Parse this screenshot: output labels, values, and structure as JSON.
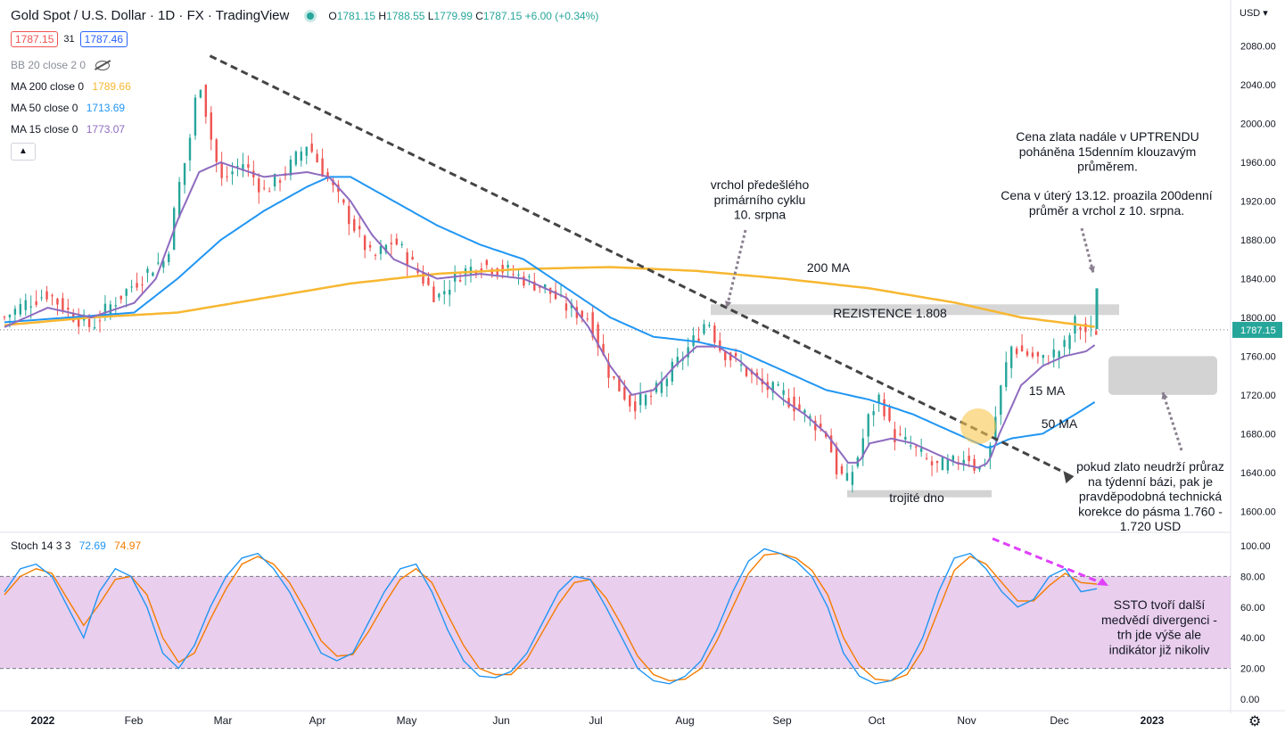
{
  "header": {
    "symbol": "Gold Spot / U.S. Dollar · 1D · FX · TradingView",
    "open": "1781.15",
    "high": "1788.55",
    "low": "1779.99",
    "close": "1787.15",
    "change": "+6.00 (+0.34%)",
    "bid": "1787.15",
    "spread": "31",
    "ask": "1787.46",
    "currency": "USD"
  },
  "indicators": [
    {
      "label": "BB 20 close 2 0",
      "value": "",
      "color": "#8a8e99"
    },
    {
      "label": "MA 200 close 0",
      "value": "1789.66",
      "color": "#f7b731"
    },
    {
      "label": "MA 50 close 0",
      "value": "1713.69",
      "color": "#2196f3"
    },
    {
      "label": "MA 15 close 0",
      "value": "1773.07",
      "color": "#8e6bbf"
    }
  ],
  "stoch": {
    "label": "Stoch 14 3 3",
    "k": "72.69",
    "d": "74.97",
    "k_color": "#2196f3",
    "d_color": "#f57c00",
    "upper_band": 80,
    "lower_band": 20,
    "ticks": [
      "100.00",
      "80.00",
      "60.00",
      "40.00",
      "20.00",
      "0.00"
    ]
  },
  "chart_data": {
    "type": "candlestick",
    "title": "Gold Spot / U.S. Dollar · 1D · FX · TradingView",
    "ylim": [
      1580,
      2100
    ],
    "y_ticks": [
      1600,
      1640,
      1680,
      1720,
      1760,
      1800,
      1840,
      1880,
      1920,
      1960,
      2000,
      2040,
      2080
    ],
    "x_ticks": [
      "2022",
      "Feb",
      "Mar",
      "Apr",
      "May",
      "Jun",
      "Jul",
      "Aug",
      "Sep",
      "Oct",
      "Nov",
      "Dec",
      "2023"
    ],
    "last_price": "1787.15",
    "colors": {
      "up": "#26a69a",
      "down": "#ef5350",
      "ma200": "#f7b731",
      "ma50": "#2196f3",
      "ma15": "#8e6bbf"
    },
    "price_path": [
      [
        0,
        1800
      ],
      [
        10,
        1815
      ],
      [
        20,
        1825
      ],
      [
        30,
        1805
      ],
      [
        40,
        1790
      ],
      [
        50,
        1815
      ],
      [
        60,
        1835
      ],
      [
        70,
        1855
      ],
      [
        75,
        1860
      ],
      [
        80,
        1930
      ],
      [
        85,
        1975
      ],
      [
        90,
        2050
      ],
      [
        95,
        1990
      ],
      [
        100,
        1940
      ],
      [
        110,
        1960
      ],
      [
        120,
        1930
      ],
      [
        130,
        1950
      ],
      [
        140,
        1980
      ],
      [
        150,
        1940
      ],
      [
        160,
        1900
      ],
      [
        170,
        1860
      ],
      [
        180,
        1880
      ],
      [
        190,
        1850
      ],
      [
        200,
        1820
      ],
      [
        210,
        1845
      ],
      [
        220,
        1855
      ],
      [
        230,
        1850
      ],
      [
        240,
        1840
      ],
      [
        250,
        1830
      ],
      [
        260,
        1810
      ],
      [
        270,
        1800
      ],
      [
        280,
        1740
      ],
      [
        290,
        1710
      ],
      [
        300,
        1720
      ],
      [
        310,
        1750
      ],
      [
        320,
        1780
      ],
      [
        325,
        1800
      ],
      [
        330,
        1770
      ],
      [
        340,
        1750
      ],
      [
        350,
        1730
      ],
      [
        360,
        1720
      ],
      [
        370,
        1700
      ],
      [
        380,
        1680
      ],
      [
        385,
        1640
      ],
      [
        390,
        1630
      ],
      [
        395,
        1660
      ],
      [
        400,
        1700
      ],
      [
        405,
        1720
      ],
      [
        410,
        1680
      ],
      [
        420,
        1665
      ],
      [
        430,
        1645
      ],
      [
        440,
        1650
      ],
      [
        445,
        1660
      ],
      [
        450,
        1640
      ],
      [
        455,
        1660
      ],
      [
        460,
        1720
      ],
      [
        465,
        1770
      ],
      [
        470,
        1765
      ],
      [
        480,
        1755
      ],
      [
        490,
        1770
      ],
      [
        495,
        1795
      ],
      [
        500,
        1785
      ],
      [
        505,
        1787
      ]
    ],
    "ma15_path": [
      [
        0,
        1790
      ],
      [
        20,
        1810
      ],
      [
        40,
        1800
      ],
      [
        60,
        1815
      ],
      [
        70,
        1840
      ],
      [
        80,
        1900
      ],
      [
        90,
        1950
      ],
      [
        100,
        1960
      ],
      [
        120,
        1945
      ],
      [
        140,
        1950
      ],
      [
        150,
        1945
      ],
      [
        160,
        1920
      ],
      [
        170,
        1885
      ],
      [
        180,
        1860
      ],
      [
        190,
        1850
      ],
      [
        200,
        1840
      ],
      [
        220,
        1845
      ],
      [
        240,
        1840
      ],
      [
        260,
        1820
      ],
      [
        270,
        1790
      ],
      [
        280,
        1750
      ],
      [
        290,
        1720
      ],
      [
        300,
        1725
      ],
      [
        310,
        1750
      ],
      [
        320,
        1770
      ],
      [
        330,
        1770
      ],
      [
        340,
        1755
      ],
      [
        350,
        1735
      ],
      [
        360,
        1715
      ],
      [
        370,
        1700
      ],
      [
        380,
        1680
      ],
      [
        390,
        1650
      ],
      [
        395,
        1650
      ],
      [
        400,
        1670
      ],
      [
        410,
        1675
      ],
      [
        420,
        1670
      ],
      [
        430,
        1660
      ],
      [
        440,
        1650
      ],
      [
        450,
        1645
      ],
      [
        455,
        1650
      ],
      [
        460,
        1680
      ],
      [
        470,
        1730
      ],
      [
        480,
        1750
      ],
      [
        490,
        1760
      ],
      [
        500,
        1765
      ],
      [
        505,
        1773
      ]
    ],
    "ma50_path": [
      [
        0,
        1795
      ],
      [
        30,
        1800
      ],
      [
        60,
        1805
      ],
      [
        80,
        1840
      ],
      [
        100,
        1880
      ],
      [
        120,
        1910
      ],
      [
        140,
        1935
      ],
      [
        150,
        1945
      ],
      [
        160,
        1945
      ],
      [
        180,
        1920
      ],
      [
        200,
        1895
      ],
      [
        220,
        1875
      ],
      [
        240,
        1860
      ],
      [
        260,
        1830
      ],
      [
        280,
        1800
      ],
      [
        300,
        1780
      ],
      [
        320,
        1775
      ],
      [
        340,
        1765
      ],
      [
        360,
        1745
      ],
      [
        380,
        1725
      ],
      [
        400,
        1715
      ],
      [
        420,
        1700
      ],
      [
        440,
        1680
      ],
      [
        455,
        1665
      ],
      [
        465,
        1675
      ],
      [
        480,
        1680
      ],
      [
        495,
        1700
      ],
      [
        505,
        1714
      ]
    ],
    "ma200_path": [
      [
        0,
        1792
      ],
      [
        40,
        1800
      ],
      [
        80,
        1805
      ],
      [
        120,
        1820
      ],
      [
        160,
        1835
      ],
      [
        200,
        1845
      ],
      [
        240,
        1850
      ],
      [
        280,
        1852
      ],
      [
        320,
        1848
      ],
      [
        360,
        1840
      ],
      [
        400,
        1830
      ],
      [
        440,
        1815
      ],
      [
        470,
        1800
      ],
      [
        505,
        1790
      ]
    ],
    "trendline": [
      [
        95,
        2070
      ],
      [
        490,
        1640
      ]
    ],
    "resistance": {
      "level": 1808,
      "label": "REZISTENCE 1.808"
    },
    "triple_bottom": {
      "level": 1618,
      "label": "trojité dno"
    },
    "support_zone": [
      1720,
      1760
    ],
    "stoch_k": [
      70,
      85,
      88,
      80,
      60,
      40,
      70,
      85,
      80,
      60,
      30,
      20,
      35,
      60,
      80,
      92,
      95,
      85,
      70,
      50,
      30,
      25,
      30,
      50,
      70,
      85,
      88,
      70,
      45,
      25,
      15,
      14,
      18,
      30,
      50,
      70,
      80,
      78,
      60,
      40,
      20,
      12,
      10,
      15,
      25,
      45,
      70,
      90,
      98,
      95,
      90,
      80,
      60,
      30,
      15,
      10,
      12,
      20,
      40,
      70,
      92,
      95,
      85,
      70,
      60,
      65,
      80,
      85,
      70,
      72
    ],
    "stoch_d": [
      68,
      80,
      85,
      82,
      65,
      48,
      62,
      78,
      80,
      68,
      40,
      24,
      30,
      52,
      72,
      88,
      93,
      88,
      76,
      58,
      38,
      28,
      29,
      44,
      62,
      78,
      85,
      76,
      55,
      35,
      20,
      16,
      16,
      26,
      44,
      62,
      76,
      78,
      66,
      48,
      28,
      16,
      12,
      13,
      20,
      38,
      60,
      82,
      94,
      95,
      92,
      84,
      68,
      40,
      22,
      13,
      12,
      16,
      32,
      58,
      84,
      93,
      88,
      76,
      64,
      64,
      74,
      82,
      76,
      75
    ],
    "labels": {
      "ma200": "200 MA",
      "ma15": "15 MA",
      "ma50": "50 MA",
      "prior_top": "vrchol předešlého primárního cyklu 10. srpna",
      "uptrend": "Cena zlata nadále v UPTRENDU poháněna 15denním klouzavým průměrem.",
      "breakout": "Cena v úterý 13.12. proazila 200denní průměr a vrchol z 10. srpna.",
      "correction": "pokud zlato neudrží průraz na týdenní bázi, pak je pravděpodobná technická korekce do pásma 1.760 - 1.720 USD",
      "ssto": "SSTO tvoří další medvědí divergenci - trh jde výše ale indikátor již nikoliv"
    }
  }
}
